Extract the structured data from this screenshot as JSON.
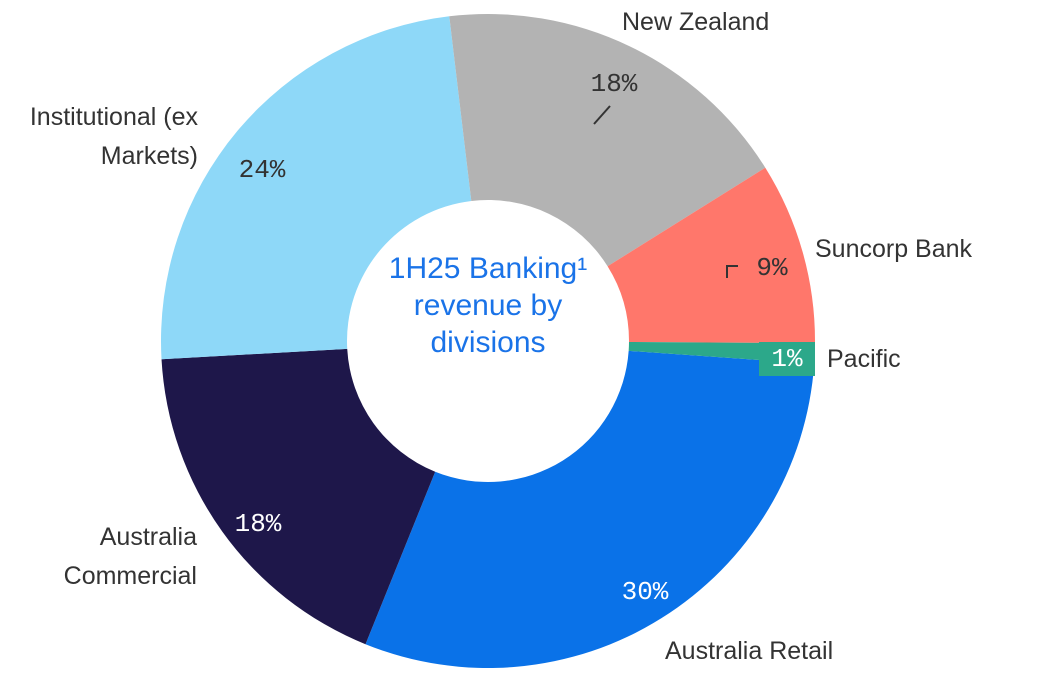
{
  "chart_data": {
    "type": "donut",
    "title": "1H25 Banking¹ revenue by divisions",
    "categories": [
      "Australia Retail",
      "Australia Commercial",
      "Institutional (ex Markets)",
      "New Zealand",
      "Suncorp Bank",
      "Pacific"
    ],
    "values": [
      30,
      18,
      24,
      18,
      9,
      1
    ],
    "value_labels": [
      "30%",
      "18%",
      "24%",
      "18%",
      "9%",
      "1%"
    ],
    "colors": [
      "#0a72e8",
      "#1e174a",
      "#8ed8f8",
      "#b3b3b3",
      "#ff776b",
      "#2ca88a"
    ]
  }
}
